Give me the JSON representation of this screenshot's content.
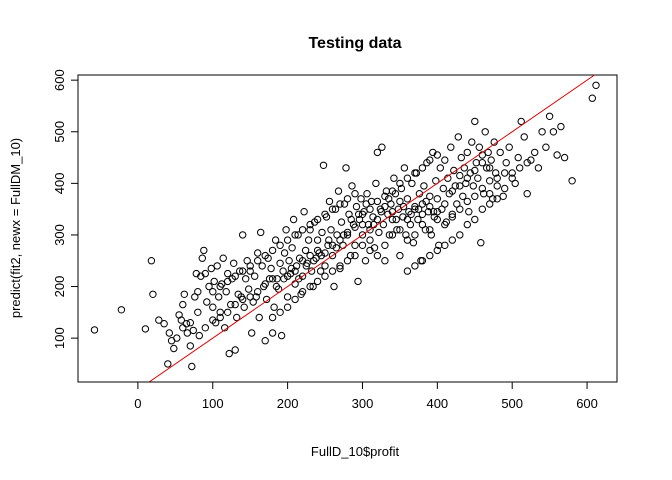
{
  "chart_data": {
    "type": "scatter",
    "title": "Testing data",
    "xlabel": "FullD_10$profit",
    "ylabel": "predict(fit2, newx = FullDM_10)",
    "xlim": [
      -80,
      640
    ],
    "ylim": [
      15,
      610
    ],
    "xticks": [
      "0",
      "100",
      "200",
      "300",
      "400",
      "500",
      "600"
    ],
    "yticks": [
      "100",
      "200",
      "300",
      "400",
      "500",
      "600"
    ],
    "grid": false,
    "legend": "none",
    "marker": "open-circle",
    "point_color": "#000000",
    "line_color": "#e00000",
    "reference_line": {
      "slope": 1,
      "intercept": 0
    },
    "points": [
      [
        -58,
        116
      ],
      [
        -22,
        155
      ],
      [
        10,
        118
      ],
      [
        18,
        250
      ],
      [
        20,
        185
      ],
      [
        28,
        135
      ],
      [
        35,
        128
      ],
      [
        40,
        50
      ],
      [
        42,
        110
      ],
      [
        45,
        95
      ],
      [
        48,
        80
      ],
      [
        52,
        100
      ],
      [
        55,
        145
      ],
      [
        58,
        135
      ],
      [
        60,
        165
      ],
      [
        62,
        185
      ],
      [
        65,
        128
      ],
      [
        66,
        110
      ],
      [
        70,
        85
      ],
      [
        72,
        45
      ],
      [
        74,
        115
      ],
      [
        76,
        180
      ],
      [
        78,
        225
      ],
      [
        80,
        190
      ],
      [
        82,
        105
      ],
      [
        84,
        220
      ],
      [
        86,
        255
      ],
      [
        88,
        270
      ],
      [
        90,
        225
      ],
      [
        92,
        170
      ],
      [
        95,
        200
      ],
      [
        98,
        235
      ],
      [
        100,
        160
      ],
      [
        102,
        210
      ],
      [
        104,
        130
      ],
      [
        106,
        240
      ],
      [
        108,
        180
      ],
      [
        110,
        150
      ],
      [
        112,
        205
      ],
      [
        114,
        255
      ],
      [
        116,
        120
      ],
      [
        118,
        190
      ],
      [
        120,
        225
      ],
      [
        122,
        70
      ],
      [
        124,
        165
      ],
      [
        126,
        215
      ],
      [
        128,
        245
      ],
      [
        130,
        77
      ],
      [
        132,
        140
      ],
      [
        134,
        185
      ],
      [
        136,
        230
      ],
      [
        138,
        180
      ],
      [
        140,
        300
      ],
      [
        142,
        160
      ],
      [
        144,
        215
      ],
      [
        146,
        250
      ],
      [
        148,
        195
      ],
      [
        150,
        230
      ],
      [
        152,
        110
      ],
      [
        154,
        170
      ],
      [
        156,
        220
      ],
      [
        158,
        180
      ],
      [
        160,
        265
      ],
      [
        162,
        140
      ],
      [
        164,
        305
      ],
      [
        166,
        240
      ],
      [
        168,
        200
      ],
      [
        170,
        95
      ],
      [
        172,
        175
      ],
      [
        174,
        255
      ],
      [
        176,
        215
      ],
      [
        178,
        235
      ],
      [
        180,
        110
      ],
      [
        182,
        160
      ],
      [
        184,
        290
      ],
      [
        186,
        215
      ],
      [
        188,
        195
      ],
      [
        190,
        245
      ],
      [
        192,
        105
      ],
      [
        194,
        230
      ],
      [
        196,
        265
      ],
      [
        198,
        310
      ],
      [
        200,
        180
      ],
      [
        202,
        250
      ],
      [
        204,
        225
      ],
      [
        206,
        275
      ],
      [
        208,
        330
      ],
      [
        210,
        205
      ],
      [
        212,
        240
      ],
      [
        214,
        300
      ],
      [
        216,
        255
      ],
      [
        218,
        185
      ],
      [
        220,
        220
      ],
      [
        222,
        345
      ],
      [
        224,
        270
      ],
      [
        226,
        245
      ],
      [
        228,
        290
      ],
      [
        230,
        310
      ],
      [
        232,
        230
      ],
      [
        234,
        200
      ],
      [
        236,
        325
      ],
      [
        238,
        255
      ],
      [
        240,
        290
      ],
      [
        242,
        265
      ],
      [
        244,
        230
      ],
      [
        246,
        305
      ],
      [
        248,
        435
      ],
      [
        250,
        240
      ],
      [
        252,
        335
      ],
      [
        254,
        280
      ],
      [
        256,
        365
      ],
      [
        258,
        310
      ],
      [
        260,
        260
      ],
      [
        262,
        200
      ],
      [
        264,
        350
      ],
      [
        266,
        300
      ],
      [
        268,
        385
      ],
      [
        270,
        235
      ],
      [
        272,
        325
      ],
      [
        274,
        280
      ],
      [
        276,
        360
      ],
      [
        278,
        430
      ],
      [
        280,
        300
      ],
      [
        282,
        340
      ],
      [
        284,
        260
      ],
      [
        286,
        395
      ],
      [
        288,
        320
      ],
      [
        290,
        280
      ],
      [
        292,
        355
      ],
      [
        294,
        210
      ],
      [
        296,
        330
      ],
      [
        298,
        370
      ],
      [
        300,
        300
      ],
      [
        302,
        345
      ],
      [
        304,
        250
      ],
      [
        306,
        380
      ],
      [
        308,
        320
      ],
      [
        310,
        290
      ],
      [
        312,
        365
      ],
      [
        314,
        335
      ],
      [
        316,
        275
      ],
      [
        318,
        400
      ],
      [
        320,
        460
      ],
      [
        322,
        305
      ],
      [
        324,
        350
      ],
      [
        326,
        470
      ],
      [
        328,
        320
      ],
      [
        330,
        280
      ],
      [
        332,
        385
      ],
      [
        334,
        340
      ],
      [
        336,
        300
      ],
      [
        338,
        360
      ],
      [
        340,
        330
      ],
      [
        342,
        410
      ],
      [
        344,
        380
      ],
      [
        346,
        310
      ],
      [
        348,
        350
      ],
      [
        350,
        260
      ],
      [
        352,
        390
      ],
      [
        354,
        335
      ],
      [
        356,
        430
      ],
      [
        358,
        300
      ],
      [
        360,
        370
      ],
      [
        362,
        345
      ],
      [
        364,
        320
      ],
      [
        366,
        400
      ],
      [
        368,
        285
      ],
      [
        370,
        355
      ],
      [
        372,
        420
      ],
      [
        374,
        330
      ],
      [
        376,
        380
      ],
      [
        378,
        250
      ],
      [
        380,
        360
      ],
      [
        382,
        395
      ],
      [
        384,
        310
      ],
      [
        386,
        440
      ],
      [
        388,
        345
      ],
      [
        390,
        375
      ],
      [
        392,
        300
      ],
      [
        394,
        460
      ],
      [
        396,
        335
      ],
      [
        398,
        405
      ],
      [
        400,
        370
      ],
      [
        402,
        280
      ],
      [
        404,
        430
      ],
      [
        406,
        350
      ],
      [
        408,
        390
      ],
      [
        410,
        445
      ],
      [
        412,
        325
      ],
      [
        414,
        410
      ],
      [
        416,
        380
      ],
      [
        418,
        470
      ],
      [
        420,
        340
      ],
      [
        422,
        425
      ],
      [
        424,
        395
      ],
      [
        426,
        360
      ],
      [
        428,
        490
      ],
      [
        430,
        415
      ],
      [
        432,
        450
      ],
      [
        434,
        375
      ],
      [
        436,
        430
      ],
      [
        438,
        400
      ],
      [
        440,
        460
      ],
      [
        442,
        345
      ],
      [
        444,
        420
      ],
      [
        446,
        480
      ],
      [
        448,
        395
      ],
      [
        450,
        520
      ],
      [
        452,
        440
      ],
      [
        454,
        410
      ],
      [
        456,
        470
      ],
      [
        458,
        285
      ],
      [
        460,
        455
      ],
      [
        462,
        380
      ],
      [
        464,
        500
      ],
      [
        466,
        430
      ],
      [
        468,
        460
      ],
      [
        470,
        405
      ],
      [
        472,
        445
      ],
      [
        474,
        370
      ],
      [
        476,
        480
      ],
      [
        478,
        420
      ],
      [
        480,
        395
      ],
      [
        484,
        460
      ],
      [
        488,
        375
      ],
      [
        492,
        440
      ],
      [
        496,
        470
      ],
      [
        500,
        420
      ],
      [
        504,
        400
      ],
      [
        508,
        450
      ],
      [
        512,
        520
      ],
      [
        516,
        490
      ],
      [
        520,
        380
      ],
      [
        525,
        445
      ],
      [
        530,
        460
      ],
      [
        535,
        430
      ],
      [
        540,
        500
      ],
      [
        545,
        470
      ],
      [
        550,
        530
      ],
      [
        555,
        500
      ],
      [
        560,
        455
      ],
      [
        565,
        510
      ],
      [
        570,
        450
      ],
      [
        580,
        405
      ],
      [
        607,
        565
      ],
      [
        612,
        590
      ],
      [
        295,
        340
      ],
      [
        305,
        360
      ],
      [
        315,
        320
      ],
      [
        325,
        345
      ],
      [
        335,
        370
      ],
      [
        345,
        330
      ],
      [
        355,
        355
      ],
      [
        365,
        340
      ],
      [
        375,
        350
      ],
      [
        385,
        365
      ],
      [
        395,
        345
      ],
      [
        310,
        310
      ],
      [
        320,
        330
      ],
      [
        330,
        355
      ],
      [
        340,
        345
      ],
      [
        350,
        365
      ],
      [
        360,
        330
      ],
      [
        370,
        350
      ],
      [
        380,
        340
      ],
      [
        390,
        355
      ],
      [
        400,
        345
      ],
      [
        410,
        360
      ],
      [
        420,
        385
      ],
      [
        430,
        395
      ],
      [
        440,
        410
      ],
      [
        450,
        425
      ],
      [
        460,
        440
      ],
      [
        470,
        430
      ],
      [
        200,
        220
      ],
      [
        210,
        230
      ],
      [
        220,
        250
      ],
      [
        230,
        260
      ],
      [
        240,
        270
      ],
      [
        250,
        265
      ],
      [
        260,
        280
      ],
      [
        270,
        290
      ],
      [
        280,
        305
      ],
      [
        290,
        315
      ],
      [
        300,
        320
      ],
      [
        185,
        200
      ],
      [
        195,
        215
      ],
      [
        205,
        235
      ],
      [
        215,
        215
      ],
      [
        225,
        240
      ],
      [
        235,
        250
      ],
      [
        245,
        260
      ],
      [
        255,
        290
      ],
      [
        265,
        275
      ],
      [
        275,
        300
      ],
      [
        285,
        330
      ],
      [
        160,
        190
      ],
      [
        170,
        205
      ],
      [
        180,
        215
      ],
      [
        150,
        180
      ],
      [
        140,
        175
      ],
      [
        130,
        165
      ],
      [
        120,
        150
      ],
      [
        110,
        140
      ],
      [
        100,
        135
      ],
      [
        90,
        120
      ],
      [
        80,
        150
      ],
      [
        70,
        130
      ],
      [
        60,
        120
      ],
      [
        340,
        300
      ],
      [
        350,
        310
      ],
      [
        360,
        290
      ],
      [
        370,
        300
      ],
      [
        380,
        320
      ],
      [
        390,
        310
      ],
      [
        400,
        330
      ],
      [
        410,
        320
      ],
      [
        420,
        335
      ],
      [
        430,
        350
      ],
      [
        440,
        365
      ],
      [
        450,
        375
      ],
      [
        460,
        390
      ],
      [
        470,
        380
      ],
      [
        480,
        410
      ],
      [
        490,
        420
      ],
      [
        300,
        280
      ],
      [
        310,
        270
      ],
      [
        320,
        260
      ],
      [
        330,
        250
      ],
      [
        290,
        260
      ],
      [
        280,
        250
      ],
      [
        270,
        240
      ],
      [
        260,
        230
      ],
      [
        250,
        220
      ],
      [
        240,
        210
      ],
      [
        230,
        200
      ],
      [
        220,
        190
      ],
      [
        210,
        175
      ],
      [
        200,
        160
      ],
      [
        190,
        150
      ],
      [
        180,
        140
      ],
      [
        370,
        420
      ],
      [
        380,
        430
      ],
      [
        390,
        445
      ],
      [
        400,
        455
      ],
      [
        360,
        410
      ],
      [
        350,
        400
      ],
      [
        340,
        385
      ],
      [
        330,
        375
      ],
      [
        320,
        365
      ],
      [
        310,
        350
      ],
      [
        300,
        340
      ],
      [
        440,
        320
      ],
      [
        450,
        330
      ],
      [
        460,
        350
      ],
      [
        470,
        360
      ],
      [
        480,
        370
      ],
      [
        490,
        390
      ],
      [
        500,
        410
      ],
      [
        510,
        430
      ],
      [
        520,
        440
      ],
      [
        430,
        300
      ],
      [
        420,
        290
      ],
      [
        410,
        280
      ],
      [
        400,
        270
      ],
      [
        390,
        260
      ],
      [
        380,
        250
      ],
      [
        370,
        240
      ],
      [
        360,
        230
      ],
      [
        270,
        360
      ],
      [
        280,
        370
      ],
      [
        290,
        380
      ],
      [
        260,
        350
      ],
      [
        250,
        340
      ],
      [
        240,
        330
      ],
      [
        230,
        320
      ],
      [
        220,
        310
      ],
      [
        210,
        300
      ],
      [
        200,
        290
      ],
      [
        190,
        280
      ],
      [
        180,
        270
      ],
      [
        170,
        260
      ],
      [
        160,
        250
      ],
      [
        150,
        240
      ],
      [
        140,
        230
      ],
      [
        130,
        220
      ],
      [
        120,
        210
      ],
      [
        110,
        200
      ],
      [
        100,
        190
      ]
    ]
  }
}
